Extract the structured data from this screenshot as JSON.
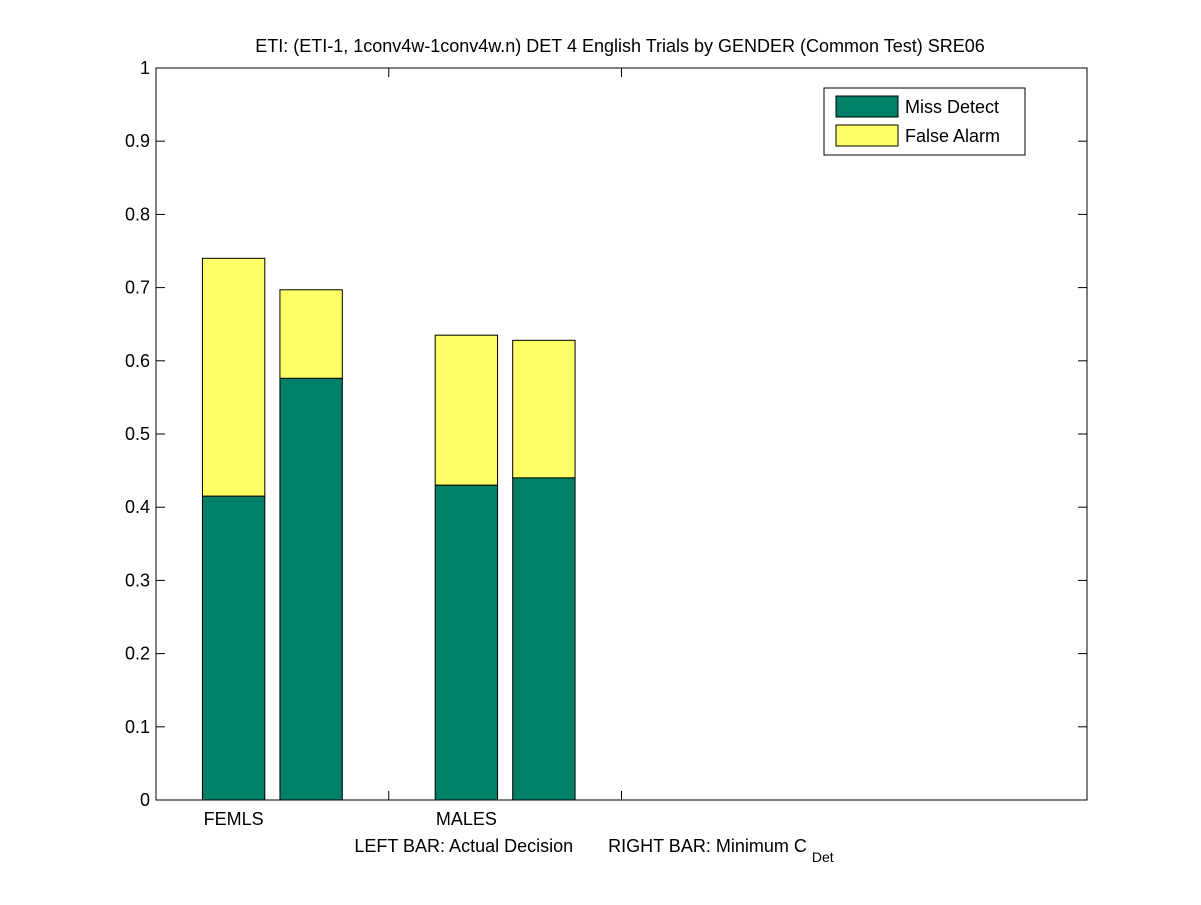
{
  "chart_data": {
    "type": "bar",
    "stacked": true,
    "title": "ETI: (ETI-1, 1conv4w-1conv4w.n) DET 4 English Trials by GENDER (Common Test) SRE06",
    "xlabel_parts": {
      "left": "LEFT BAR: Actual Decision",
      "right": "RIGHT BAR: Minimum C",
      "subscript": "Det"
    },
    "ylabel": "",
    "ylim": [
      0,
      1
    ],
    "yticks": [
      "0",
      "0.1",
      "0.2",
      "0.3",
      "0.4",
      "0.5",
      "0.6",
      "0.7",
      "0.8",
      "0.9",
      "1"
    ],
    "categories": [
      "FEMLS",
      "MALES"
    ],
    "bars_per_category": [
      "Actual Decision",
      "Minimum C_Det"
    ],
    "series": [
      {
        "name": "Miss Detect",
        "color": "#008066",
        "values": [
          [
            0.415,
            0.576
          ],
          [
            0.43,
            0.44
          ]
        ]
      },
      {
        "name": "False Alarm",
        "color": "#ffff66",
        "values": [
          [
            0.325,
            0.121
          ],
          [
            0.205,
            0.188
          ]
        ]
      }
    ],
    "totals": [
      [
        0.74,
        0.697
      ],
      [
        0.635,
        0.628
      ]
    ],
    "legend_position": "top-right",
    "grid": false
  }
}
